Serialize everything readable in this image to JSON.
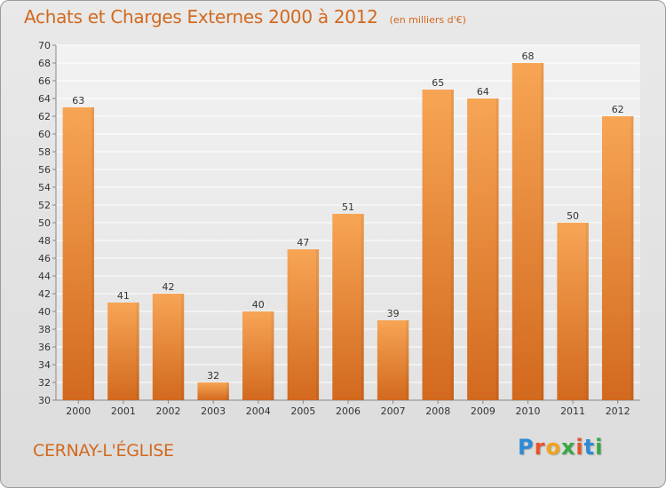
{
  "header": {
    "title": "Achats et Charges Externes 2000 à 2012",
    "unit": "(en milliers d'€)"
  },
  "footer": {
    "commune": "CERNAY-L'ÉGLISE",
    "logo_letters": [
      "P",
      "r",
      "o",
      "x",
      "i",
      "t",
      "i"
    ],
    "logo_colors": [
      "#2e8bd6",
      "#e8542a",
      "#f2a31a",
      "#3aa845",
      "#e8542a",
      "#2e8bd6",
      "#3aa845"
    ]
  },
  "chart_data": {
    "type": "bar",
    "title": "Achats et Charges Externes 2000 à 2012",
    "subtitle": "(en milliers d'€)",
    "xlabel": "",
    "ylabel": "",
    "categories": [
      "2000",
      "2001",
      "2002",
      "2003",
      "2004",
      "2005",
      "2006",
      "2007",
      "2008",
      "2009",
      "2010",
      "2011",
      "2012"
    ],
    "values": [
      63,
      41,
      42,
      32,
      40,
      47,
      51,
      39,
      65,
      64,
      68,
      50,
      62
    ],
    "ylim": [
      30,
      70
    ],
    "ytick_step": 2,
    "grid": true,
    "legend": "none",
    "colors": {
      "bar_top": "#f7a555",
      "bar_bottom": "#d2691e",
      "text": "#d2691e"
    }
  }
}
